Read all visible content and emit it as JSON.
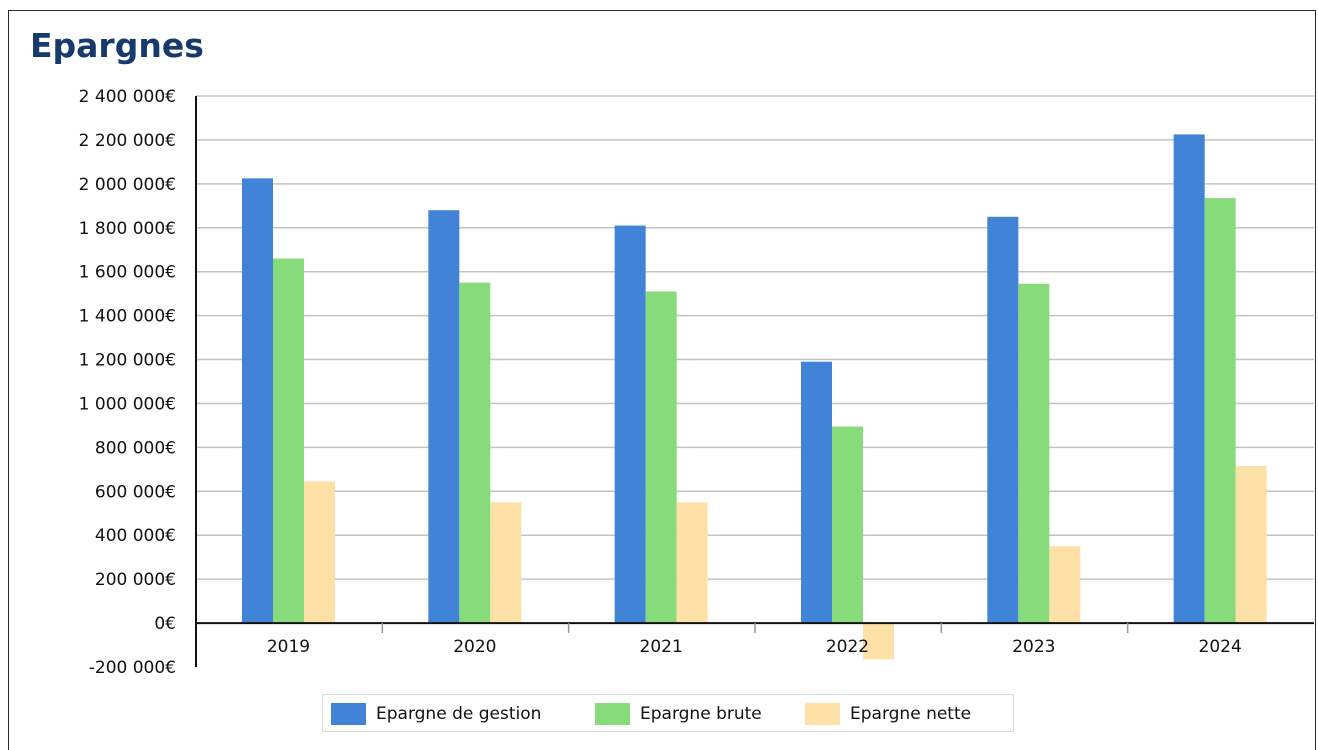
{
  "page": {
    "title": "Epargnes"
  },
  "chart_data": {
    "type": "bar",
    "title": "Epargnes",
    "categories": [
      "2019",
      "2020",
      "2021",
      "2022",
      "2023",
      "2024"
    ],
    "series": [
      {
        "name": "Epargne de gestion",
        "color": "#4183d7",
        "values": [
          2025000,
          1880000,
          1810000,
          1190000,
          1850000,
          2225000
        ]
      },
      {
        "name": "Epargne brute",
        "color": "#87db7a",
        "values": [
          1660000,
          1550000,
          1510000,
          895000,
          1545000,
          1935000
        ]
      },
      {
        "name": "Epargne nette",
        "color": "#fde1a7",
        "values": [
          645000,
          550000,
          550000,
          -165000,
          350000,
          715000
        ]
      }
    ],
    "ylim": [
      -200000,
      2400000
    ],
    "yticks": [
      {
        "value": 2400000,
        "label": "2 400 000€"
      },
      {
        "value": 2200000,
        "label": "2 200 000€"
      },
      {
        "value": 2000000,
        "label": "2 000 000€"
      },
      {
        "value": 1800000,
        "label": "1 800 000€"
      },
      {
        "value": 1600000,
        "label": "1 600 000€"
      },
      {
        "value": 1400000,
        "label": "1 400 000€"
      },
      {
        "value": 1200000,
        "label": "1 200 000€"
      },
      {
        "value": 1000000,
        "label": "1 000 000€"
      },
      {
        "value": 800000,
        "label": "800 000€"
      },
      {
        "value": 600000,
        "label": "600 000€"
      },
      {
        "value": 400000,
        "label": "400 000€"
      },
      {
        "value": 200000,
        "label": "200 000€"
      },
      {
        "value": 0,
        "label": "0€"
      },
      {
        "value": -200000,
        "label": "-200 000€"
      }
    ],
    "grid": true,
    "legend_position": "bottom-center"
  }
}
